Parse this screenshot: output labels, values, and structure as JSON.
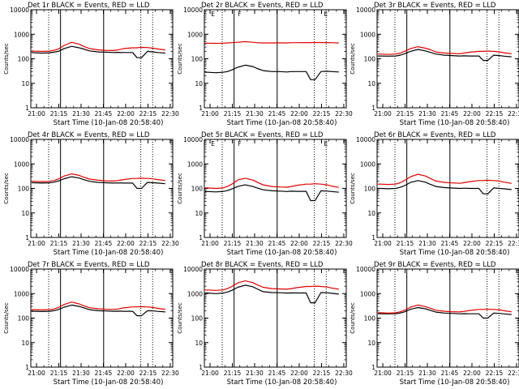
{
  "page": {
    "background": "#ffffff",
    "series_colors": {
      "events": "#000000",
      "lld": "#e00000"
    }
  },
  "chart_data": [
    {
      "type": "line",
      "title": "Det 1r BLACK = Events, RED = LLD",
      "xlabel": "Start Time (10-Jan-08 20:58:40)",
      "ylabel": "Counts/sec",
      "x_tick_labels": [
        "21:00",
        "21:15",
        "21:30",
        "21:45",
        "22:00",
        "22:15",
        "22:30"
      ],
      "y_tick_labels": [
        "1",
        "10",
        "100",
        "1000",
        "10000"
      ],
      "ylim": [
        1,
        10000
      ],
      "yscale": "log",
      "grid": false,
      "x_minutes": [
        -2,
        0,
        5,
        10,
        13,
        16,
        20,
        25,
        30,
        33,
        37,
        43,
        48,
        53,
        56,
        60,
        66,
        69,
        70,
        72,
        76,
        80,
        83,
        88
      ],
      "series": [
        {
          "name": "Events",
          "color": "#000000",
          "values": [
            180,
            175,
            170,
            175,
            185,
            200,
            260,
            320,
            280,
            250,
            210,
            190,
            185,
            180,
            182,
            180,
            180,
            110,
            110,
            110,
            200,
            190,
            180,
            170
          ]
        },
        {
          "name": "LLD",
          "color": "#e00000",
          "values": [
            210,
            205,
            200,
            205,
            220,
            250,
            350,
            470,
            390,
            320,
            260,
            230,
            220,
            215,
            230,
            260,
            280,
            280,
            285,
            290,
            285,
            270,
            250,
            230
          ]
        }
      ],
      "markers": {
        "solid_x": [
          17.5,
          46.5
        ],
        "dotted_x": [
          9.5,
          71.5,
          79.5
        ],
        "top_letters": []
      }
    },
    {
      "type": "line",
      "title": "Det 2r BLACK = Events, RED = LLD",
      "xlabel": "Start Time (10-Jan-08 20:58:40)",
      "ylabel": "Counts/sec",
      "x_tick_labels": [
        "21:00",
        "21:15",
        "21:30",
        "21:45",
        "22:00",
        "22:15",
        "22:30"
      ],
      "y_tick_labels": [
        "1",
        "10",
        "100",
        "1000",
        "10000"
      ],
      "ylim": [
        1,
        10000
      ],
      "yscale": "log",
      "grid": false,
      "x_minutes": [
        -2,
        0,
        5,
        10,
        13,
        16,
        20,
        25,
        30,
        33,
        37,
        43,
        48,
        53,
        56,
        60,
        66,
        69,
        70,
        72,
        76,
        80,
        83,
        88
      ],
      "series": [
        {
          "name": "Events",
          "color": "#000000",
          "values": [
            28,
            28,
            27,
            28,
            30,
            35,
            45,
            55,
            48,
            40,
            33,
            30,
            30,
            29,
            30,
            30,
            30,
            14,
            14,
            14,
            30,
            31,
            30,
            29
          ]
        },
        {
          "name": "LLD",
          "color": "#e00000",
          "values": [
            430,
            430,
            425,
            430,
            440,
            450,
            470,
            500,
            470,
            450,
            440,
            440,
            445,
            440,
            450,
            450,
            455,
            455,
            460,
            460,
            460,
            455,
            450,
            440
          ]
        }
      ],
      "markers": {
        "solid_x": [
          17.5,
          46.5
        ],
        "dotted_x": [
          9.5,
          71.5,
          79.5
        ],
        "top_letters": [
          "E",
          "F",
          "E"
        ]
      }
    },
    {
      "type": "line",
      "title": "Det 3r BLACK = Events, RED = LLD",
      "xlabel": "Start Time (10-Jan-08 20:58:40)",
      "ylabel": "Counts/sec",
      "x_tick_labels": [
        "21:00",
        "21:15",
        "21:30",
        "21:45",
        "22:00",
        "22:15",
        "22:30"
      ],
      "y_tick_labels": [
        "1",
        "10",
        "100",
        "1000",
        "10000"
      ],
      "ylim": [
        1,
        10000
      ],
      "yscale": "log",
      "grid": false,
      "x_minutes": [
        -2,
        0,
        5,
        10,
        13,
        16,
        20,
        25,
        30,
        33,
        37,
        43,
        48,
        53,
        56,
        60,
        66,
        69,
        70,
        72,
        76,
        80,
        83,
        88
      ],
      "series": [
        {
          "name": "Events",
          "color": "#000000",
          "values": [
            130,
            130,
            128,
            130,
            140,
            160,
            200,
            240,
            210,
            185,
            155,
            140,
            135,
            130,
            132,
            130,
            130,
            85,
            85,
            85,
            140,
            135,
            128,
            120
          ]
        },
        {
          "name": "LLD",
          "color": "#e00000",
          "values": [
            155,
            155,
            150,
            155,
            170,
            200,
            260,
            310,
            270,
            240,
            190,
            170,
            165,
            160,
            170,
            185,
            200,
            200,
            205,
            205,
            200,
            190,
            175,
            160
          ]
        }
      ],
      "markers": {
        "solid_x": [
          17.5,
          46.5
        ],
        "dotted_x": [
          9.5,
          71.5,
          79.5
        ],
        "top_letters": []
      }
    },
    {
      "type": "line",
      "title": "Det 4r BLACK = Events, RED = LLD",
      "xlabel": "Start Time (10-Jan-08 20:58:40)",
      "ylabel": "Counts/sec",
      "x_tick_labels": [
        "21:00",
        "21:15",
        "21:30",
        "21:45",
        "22:00",
        "22:15",
        "22:30"
      ],
      "y_tick_labels": [
        "1",
        "10",
        "100",
        "1000",
        "10000"
      ],
      "ylim": [
        1,
        10000
      ],
      "yscale": "log",
      "grid": false,
      "x_minutes": [
        -2,
        0,
        5,
        10,
        13,
        16,
        20,
        25,
        30,
        33,
        37,
        43,
        48,
        53,
        56,
        60,
        66,
        69,
        70,
        72,
        76,
        80,
        83,
        88
      ],
      "series": [
        {
          "name": "Events",
          "color": "#000000",
          "values": [
            170,
            170,
            165,
            170,
            180,
            200,
            250,
            300,
            265,
            230,
            195,
            175,
            170,
            165,
            168,
            165,
            165,
            100,
            100,
            100,
            175,
            170,
            165,
            155
          ]
        },
        {
          "name": "LLD",
          "color": "#e00000",
          "values": [
            195,
            195,
            190,
            195,
            210,
            240,
            320,
            390,
            340,
            290,
            240,
            215,
            205,
            200,
            210,
            230,
            255,
            255,
            258,
            260,
            255,
            245,
            230,
            210
          ]
        }
      ],
      "markers": {
        "solid_x": [
          17.5,
          46.5
        ],
        "dotted_x": [
          9.5,
          71.5,
          79.5
        ],
        "top_letters": []
      }
    },
    {
      "type": "line",
      "title": "Det 5r BLACK = Events, RED = LLD",
      "xlabel": "Start Time (10-Jan-08 20:58:40)",
      "ylabel": "Counts/sec",
      "x_tick_labels": [
        "21:00",
        "21:15",
        "21:30",
        "21:45",
        "22:00",
        "22:15",
        "22:30"
      ],
      "y_tick_labels": [
        "1",
        "10",
        "100",
        "1000",
        "10000"
      ],
      "ylim": [
        1,
        10000
      ],
      "yscale": "log",
      "grid": false,
      "x_minutes": [
        -2,
        0,
        5,
        10,
        13,
        16,
        20,
        25,
        30,
        33,
        37,
        43,
        48,
        53,
        56,
        60,
        66,
        69,
        70,
        72,
        76,
        80,
        83,
        88
      ],
      "series": [
        {
          "name": "Events",
          "color": "#000000",
          "values": [
            75,
            75,
            72,
            75,
            82,
            95,
            120,
            140,
            120,
            105,
            88,
            80,
            78,
            75,
            77,
            76,
            76,
            32,
            32,
            32,
            80,
            78,
            75,
            70
          ]
        },
        {
          "name": "LLD",
          "color": "#e00000",
          "values": [
            105,
            105,
            100,
            105,
            120,
            150,
            220,
            260,
            220,
            180,
            140,
            120,
            115,
            112,
            120,
            135,
            150,
            150,
            152,
            155,
            150,
            140,
            125,
            110
          ]
        }
      ],
      "markers": {
        "solid_x": [
          17.5,
          46.5
        ],
        "dotted_x": [
          9.5,
          71.5,
          79.5
        ],
        "top_letters": [
          "E",
          "F",
          "E"
        ]
      }
    },
    {
      "type": "line",
      "title": "Det 6r BLACK = Events, RED = LLD",
      "xlabel": "Start Time (10-Jan-08 20:58:40)",
      "ylabel": "Counts/sec",
      "x_tick_labels": [
        "21:00",
        "21:15",
        "21:30",
        "21:45",
        "22:00",
        "22:15",
        "22:30"
      ],
      "y_tick_labels": [
        "1",
        "10",
        "100",
        "1000",
        "10000"
      ],
      "ylim": [
        1,
        10000
      ],
      "yscale": "log",
      "grid": false,
      "x_minutes": [
        -2,
        0,
        5,
        10,
        13,
        16,
        20,
        25,
        30,
        33,
        37,
        43,
        48,
        53,
        56,
        60,
        66,
        69,
        70,
        72,
        76,
        80,
        83,
        88
      ],
      "series": [
        {
          "name": "Events",
          "color": "#000000",
          "values": [
            100,
            100,
            97,
            100,
            110,
            130,
            175,
            210,
            180,
            150,
            120,
            108,
            104,
            100,
            102,
            100,
            100,
            60,
            60,
            60,
            105,
            100,
            96,
            90
          ]
        },
        {
          "name": "LLD",
          "color": "#e00000",
          "values": [
            150,
            150,
            145,
            150,
            170,
            210,
            300,
            380,
            320,
            260,
            200,
            175,
            168,
            162,
            172,
            190,
            210,
            210,
            213,
            215,
            210,
            200,
            180,
            160
          ]
        }
      ],
      "markers": {
        "solid_x": [
          17.5,
          46.5
        ],
        "dotted_x": [
          9.5,
          71.5,
          79.5
        ],
        "top_letters": []
      }
    },
    {
      "type": "line",
      "title": "Det 7r BLACK = Events, RED = LLD",
      "xlabel": "Start Time (10-Jan-08 20:58:40)",
      "ylabel": "Counts/sec",
      "x_tick_labels": [
        "21:00",
        "21:15",
        "21:30",
        "21:45",
        "22:00",
        "22:15",
        "22:30"
      ],
      "y_tick_labels": [
        "1",
        "10",
        "100",
        "1000",
        "10000"
      ],
      "ylim": [
        1,
        10000
      ],
      "yscale": "log",
      "grid": false,
      "x_minutes": [
        -2,
        0,
        5,
        10,
        13,
        16,
        20,
        25,
        30,
        33,
        37,
        43,
        48,
        53,
        56,
        60,
        66,
        69,
        70,
        72,
        76,
        80,
        83,
        88
      ],
      "series": [
        {
          "name": "Events",
          "color": "#000000",
          "values": [
            190,
            190,
            185,
            190,
            200,
            220,
            280,
            340,
            300,
            265,
            220,
            200,
            195,
            190,
            192,
            190,
            190,
            125,
            125,
            125,
            200,
            195,
            188,
            178
          ]
        },
        {
          "name": "LLD",
          "color": "#e00000",
          "values": [
            220,
            220,
            215,
            220,
            235,
            270,
            360,
            450,
            380,
            320,
            265,
            240,
            230,
            225,
            235,
            260,
            285,
            285,
            290,
            290,
            285,
            270,
            250,
            230
          ]
        }
      ],
      "markers": {
        "solid_x": [
          17.5,
          46.5
        ],
        "dotted_x": [
          9.5,
          71.5,
          79.5
        ],
        "top_letters": []
      }
    },
    {
      "type": "line",
      "title": "Det 8r BLACK = Events, RED = LLD",
      "xlabel": "Start Time (10-Jan-08 20:58:40)",
      "ylabel": "Counts/sec",
      "x_tick_labels": [
        "21:00",
        "21:15",
        "21:30",
        "21:45",
        "22:00",
        "22:15",
        "22:30"
      ],
      "y_tick_labels": [
        "1",
        "10",
        "100",
        "1000",
        "10000"
      ],
      "ylim": [
        1,
        10000
      ],
      "yscale": "log",
      "grid": false,
      "x_minutes": [
        -2,
        0,
        5,
        10,
        13,
        16,
        20,
        25,
        30,
        33,
        37,
        43,
        48,
        53,
        56,
        60,
        66,
        69,
        70,
        72,
        76,
        80,
        83,
        88
      ],
      "series": [
        {
          "name": "Events",
          "color": "#000000",
          "values": [
            1050,
            1050,
            1000,
            1050,
            1150,
            1350,
            1800,
            2200,
            1900,
            1550,
            1200,
            1100,
            1080,
            1050,
            1070,
            1060,
            1060,
            420,
            420,
            420,
            1100,
            1080,
            1030,
            950
          ]
        },
        {
          "name": "LLD",
          "color": "#e00000",
          "values": [
            1400,
            1400,
            1350,
            1400,
            1600,
            1950,
            2700,
            3300,
            2800,
            2300,
            1800,
            1600,
            1550,
            1500,
            1600,
            1750,
            1950,
            1950,
            1980,
            2000,
            1950,
            1850,
            1700,
            1500
          ]
        }
      ],
      "markers": {
        "solid_x": [
          17.5,
          46.5
        ],
        "dotted_x": [
          9.5,
          71.5,
          79.5
        ],
        "top_letters": []
      }
    },
    {
      "type": "line",
      "title": "Det 9r BLACK = Events, RED = LLD",
      "xlabel": "Start Time (10-Jan-08 20:58:40)",
      "ylabel": "Counts/sec",
      "x_tick_labels": [
        "21:00",
        "21:15",
        "21:30",
        "21:45",
        "22:00",
        "22:15",
        "22:30"
      ],
      "y_tick_labels": [
        "1",
        "10",
        "100",
        "1000",
        "10000"
      ],
      "ylim": [
        1,
        10000
      ],
      "yscale": "log",
      "grid": false,
      "x_minutes": [
        -2,
        0,
        5,
        10,
        13,
        16,
        20,
        25,
        30,
        33,
        37,
        43,
        48,
        53,
        56,
        60,
        66,
        69,
        70,
        72,
        76,
        80,
        83,
        88
      ],
      "series": [
        {
          "name": "Events",
          "color": "#000000",
          "values": [
            150,
            150,
            148,
            150,
            160,
            180,
            230,
            270,
            240,
            210,
            175,
            160,
            155,
            150,
            152,
            150,
            150,
            100,
            100,
            100,
            160,
            155,
            148,
            140
          ]
        },
        {
          "name": "LLD",
          "color": "#e00000",
          "values": [
            165,
            165,
            160,
            165,
            180,
            210,
            280,
            340,
            295,
            255,
            210,
            190,
            182,
            178,
            188,
            205,
            225,
            225,
            228,
            230,
            225,
            215,
            200,
            180
          ]
        }
      ],
      "markers": {
        "solid_x": [
          17.5,
          46.5
        ],
        "dotted_x": [
          9.5,
          71.5,
          79.5
        ],
        "top_letters": []
      }
    }
  ]
}
